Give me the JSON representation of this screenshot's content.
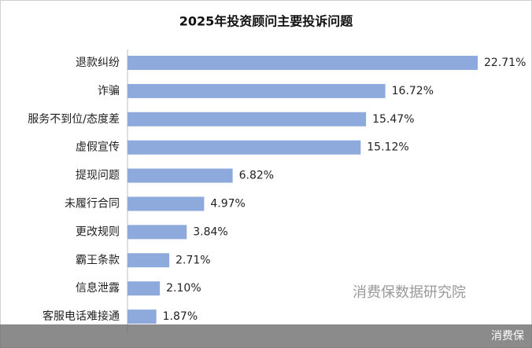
{
  "chart_data": {
    "type": "bar",
    "orientation": "horizontal",
    "title": "2025年投资顾问主要投诉问题",
    "categories": [
      "退款纠纷",
      "诈骗",
      "服务不到位/态度差",
      "虚假宣传",
      "提现问题",
      "未履行合同",
      "更改规则",
      "霸王条款",
      "信息泄露",
      "客服电话难接通"
    ],
    "values": [
      22.71,
      16.72,
      15.47,
      15.12,
      6.82,
      4.97,
      3.84,
      2.71,
      2.1,
      1.87
    ],
    "value_labels": [
      "22.71%",
      "16.72%",
      "15.47%",
      "15.12%",
      "6.82%",
      "4.97%",
      "3.84%",
      "2.71%",
      "2.10%",
      "1.87%"
    ],
    "color": "#8eaadc"
  },
  "watermark": "消费保数据研究院",
  "footer_brand": "消费保"
}
